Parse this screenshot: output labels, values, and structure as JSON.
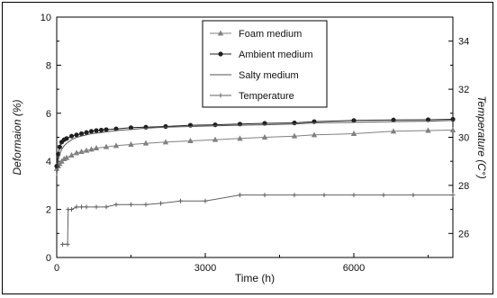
{
  "chart_data": {
    "type": "line",
    "xlabel": "Time (h)",
    "ylabel": "Deformaion (%)",
    "y2label": "Temperature (C°)",
    "xlim": [
      0,
      8000
    ],
    "ylim": [
      0,
      10
    ],
    "y2lim": [
      25,
      35
    ],
    "xticks": [
      0,
      3000,
      6000
    ],
    "yticks": [
      0,
      2,
      4,
      6,
      8,
      10
    ],
    "y2ticks": [
      26,
      28,
      30,
      32,
      34
    ],
    "legend_position": "top-center",
    "grid": false,
    "series": [
      {
        "name": "Foam medium",
        "axis": "left",
        "color": "#808080",
        "marker": "triangle",
        "x": [
          0,
          30,
          60,
          100,
          150,
          200,
          300,
          400,
          500,
          600,
          700,
          800,
          1000,
          1200,
          1500,
          1800,
          2200,
          2700,
          3200,
          3700,
          4200,
          4800,
          5200,
          6000,
          6800,
          7500,
          8000
        ],
        "y": [
          3.7,
          3.8,
          3.9,
          4.0,
          4.1,
          4.15,
          4.25,
          4.35,
          4.4,
          4.45,
          4.5,
          4.55,
          4.6,
          4.65,
          4.7,
          4.75,
          4.8,
          4.85,
          4.9,
          4.95,
          5.0,
          5.05,
          5.1,
          5.15,
          5.25,
          5.28,
          5.3
        ]
      },
      {
        "name": "Ambient medium",
        "axis": "left",
        "color": "#202020",
        "marker": "circle",
        "x": [
          0,
          30,
          60,
          100,
          150,
          200,
          300,
          400,
          500,
          600,
          700,
          800,
          900,
          1000,
          1200,
          1500,
          1800,
          2200,
          2700,
          3200,
          3700,
          4200,
          4800,
          5200,
          6000,
          6800,
          7500,
          8000
        ],
        "y": [
          3.8,
          4.3,
          4.6,
          4.8,
          4.9,
          4.95,
          5.05,
          5.1,
          5.15,
          5.2,
          5.25,
          5.28,
          5.3,
          5.32,
          5.35,
          5.4,
          5.42,
          5.45,
          5.5,
          5.52,
          5.55,
          5.58,
          5.6,
          5.65,
          5.7,
          5.72,
          5.73,
          5.75
        ]
      },
      {
        "name": "Salty medium",
        "axis": "left",
        "color": "#555555",
        "marker": "none",
        "x": [
          0,
          30,
          60,
          100,
          150,
          200,
          300,
          400,
          500,
          700,
          900,
          1200,
          1500,
          1800,
          2200,
          2700,
          3200,
          3700,
          4200,
          4800,
          5200,
          6000,
          6800,
          7500,
          8000
        ],
        "y": [
          3.4,
          4.0,
          4.3,
          4.5,
          4.65,
          4.75,
          4.9,
          5.0,
          5.05,
          5.15,
          5.2,
          5.28,
          5.33,
          5.38,
          5.42,
          5.45,
          5.48,
          5.5,
          5.52,
          5.55,
          5.6,
          5.62,
          5.65,
          5.67,
          5.7
        ]
      },
      {
        "name": "Temperature",
        "axis": "right",
        "color": "#606060",
        "marker": "cross",
        "x": [
          120,
          220,
          230,
          300,
          400,
          500,
          600,
          800,
          1000,
          1200,
          1500,
          1800,
          2100,
          2500,
          3000,
          3700,
          4200,
          4800,
          5400,
          6000,
          6600,
          7200,
          8000
        ],
        "y": [
          25.55,
          25.55,
          27.0,
          27.0,
          27.1,
          27.1,
          27.1,
          27.1,
          27.1,
          27.2,
          27.2,
          27.2,
          27.25,
          27.35,
          27.35,
          27.6,
          27.6,
          27.6,
          27.6,
          27.6,
          27.6,
          27.6,
          27.6
        ]
      }
    ]
  }
}
